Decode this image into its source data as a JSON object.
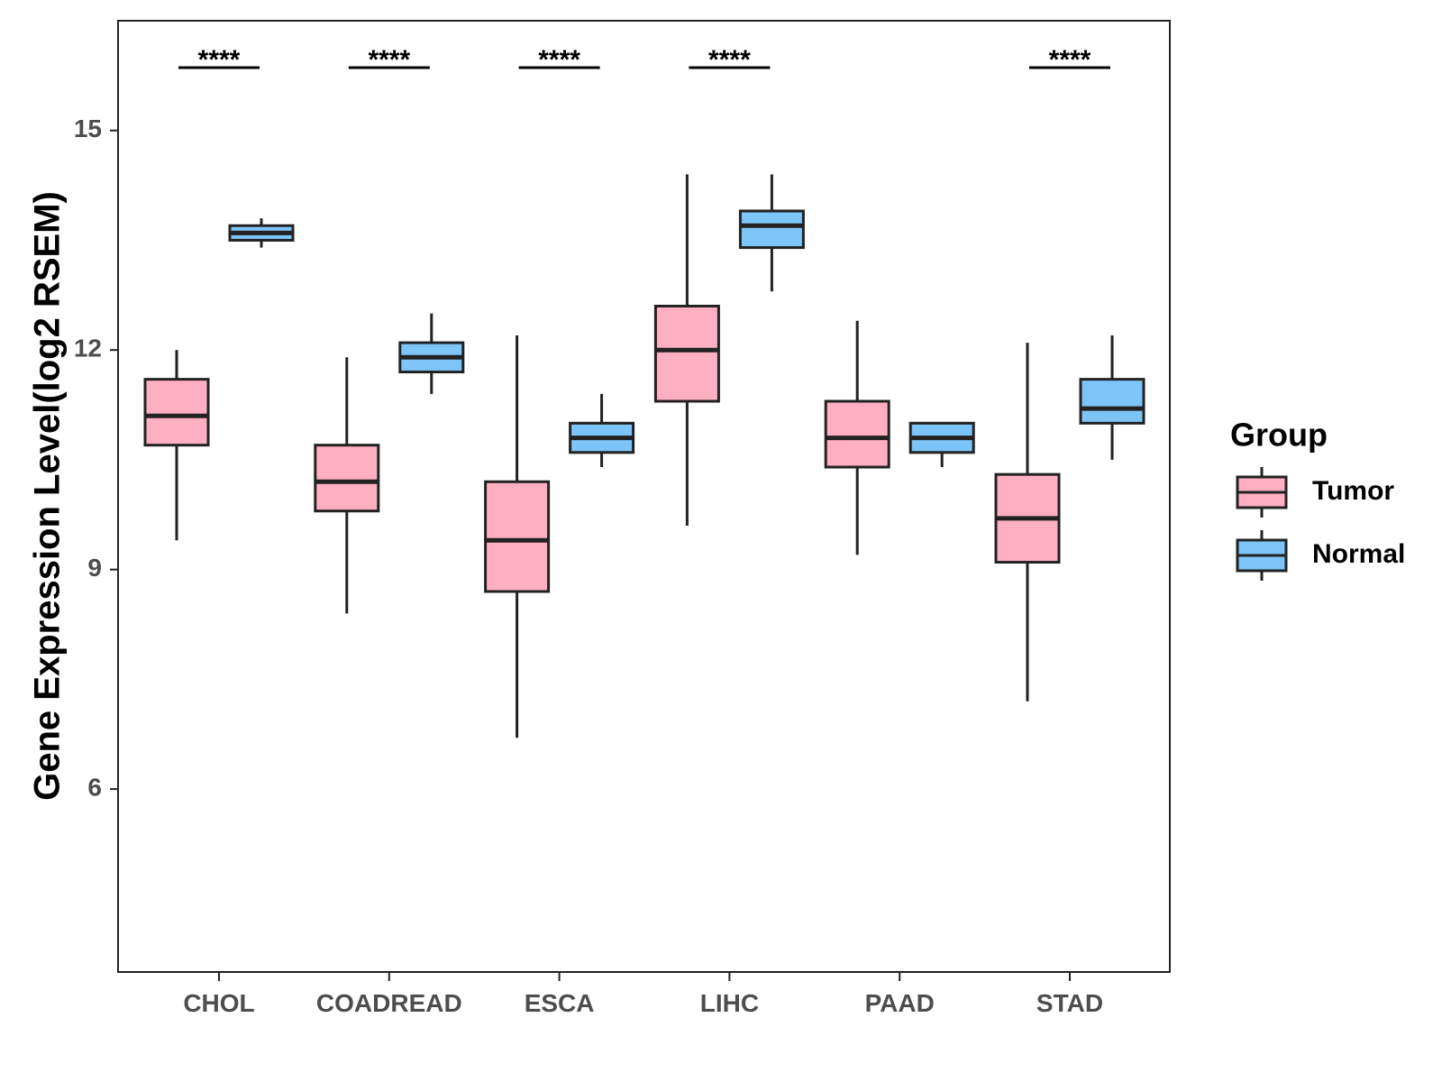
{
  "chart_data": {
    "type": "boxplot",
    "title": "",
    "xlabel": "",
    "ylabel": "Gene Expression Level(log2 RSEM)",
    "ylim": [
      3.5,
      16.5
    ],
    "yticks": [
      6,
      9,
      12,
      15
    ],
    "grid": false,
    "categories": [
      "CHOL",
      "COADREAD",
      "ESCA",
      "LIHC",
      "PAAD",
      "STAD"
    ],
    "legend": {
      "title": "Group",
      "placement": "right",
      "entries": [
        "Tumor",
        "Normal"
      ]
    },
    "series": [
      {
        "name": "Tumor",
        "color": "#ffafc2",
        "boxes": [
          {
            "category": "CHOL",
            "min": 9.4,
            "q1": 10.7,
            "median": 11.1,
            "q3": 11.6,
            "max": 12.0
          },
          {
            "category": "COADREAD",
            "min": 8.4,
            "q1": 9.8,
            "median": 10.2,
            "q3": 10.7,
            "max": 11.9
          },
          {
            "category": "ESCA",
            "min": 6.7,
            "q1": 8.7,
            "median": 9.4,
            "q3": 10.2,
            "max": 12.2
          },
          {
            "category": "LIHC",
            "min": 9.6,
            "q1": 11.3,
            "median": 12.0,
            "q3": 12.6,
            "max": 14.4
          },
          {
            "category": "PAAD",
            "min": 9.2,
            "q1": 10.4,
            "median": 10.8,
            "q3": 11.3,
            "max": 12.4
          },
          {
            "category": "STAD",
            "min": 7.2,
            "q1": 9.1,
            "median": 9.7,
            "q3": 10.3,
            "max": 12.1
          }
        ]
      },
      {
        "name": "Normal",
        "color": "#7dc4f8",
        "boxes": [
          {
            "category": "CHOL",
            "min": 13.4,
            "q1": 13.5,
            "median": 13.6,
            "q3": 13.7,
            "max": 13.8
          },
          {
            "category": "COADREAD",
            "min": 11.4,
            "q1": 11.7,
            "median": 11.9,
            "q3": 12.1,
            "max": 12.5
          },
          {
            "category": "ESCA",
            "min": 10.4,
            "q1": 10.6,
            "median": 10.8,
            "q3": 11.0,
            "max": 11.4
          },
          {
            "category": "LIHC",
            "min": 12.8,
            "q1": 13.4,
            "median": 13.7,
            "q3": 13.9,
            "max": 14.4
          },
          {
            "category": "PAAD",
            "min": 10.4,
            "q1": 10.6,
            "median": 10.8,
            "q3": 11.0,
            "max": 11.0
          },
          {
            "category": "STAD",
            "min": 10.5,
            "q1": 11.0,
            "median": 11.2,
            "q3": 11.6,
            "max": 12.2
          }
        ]
      }
    ],
    "annotations": [
      {
        "category": "CHOL",
        "label": "****"
      },
      {
        "category": "COADREAD",
        "label": "****"
      },
      {
        "category": "ESCA",
        "label": "****"
      },
      {
        "category": "LIHC",
        "label": "****"
      },
      {
        "category": "PAAD",
        "label": ""
      },
      {
        "category": "STAD",
        "label": "****"
      }
    ]
  }
}
